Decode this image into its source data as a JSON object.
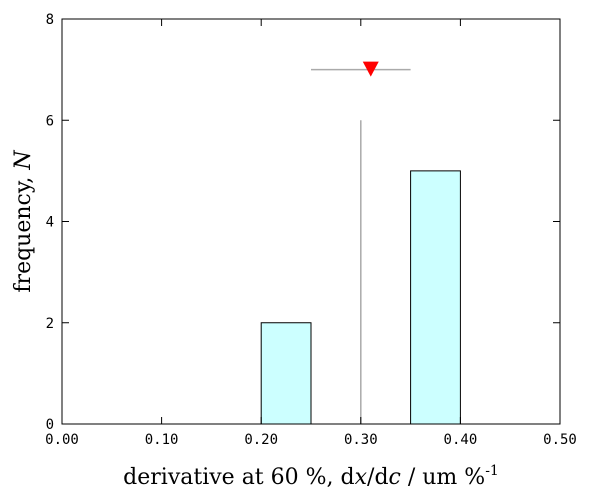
{
  "chart_data": {
    "type": "bar",
    "xlabel_parts": {
      "prefix": "derivative at 60 %, d",
      "x": "x",
      "slash": "/d",
      "c": "c",
      "units": " / um %",
      "sup": "-1"
    },
    "ylabel_parts": {
      "prefix": "frequency, ",
      "n": "N"
    },
    "xlim": [
      0.0,
      0.5
    ],
    "ylim": [
      0,
      8
    ],
    "x_ticks": [
      0.0,
      0.1,
      0.2,
      0.3,
      0.4,
      0.5
    ],
    "x_tick_labels": [
      "0.00",
      "0.10",
      "0.20",
      "0.30",
      "0.40",
      "0.50"
    ],
    "y_ticks": [
      0,
      2,
      4,
      6,
      8
    ],
    "y_tick_labels": [
      "0",
      "2",
      "4",
      "6",
      "8"
    ],
    "bins": [
      {
        "start": 0.2,
        "end": 0.25,
        "count": 2
      },
      {
        "start": 0.35,
        "end": 0.4,
        "count": 5
      }
    ],
    "reference_line": {
      "x": 0.3,
      "y_top": 6,
      "color": "#aaaaaa"
    },
    "marker": {
      "x": 0.31,
      "y": 7,
      "err_low": 0.25,
      "err_high": 0.35,
      "color": "#ff0000",
      "err_color": "#aaaaaa"
    },
    "bar_fill": "#ccffff",
    "bar_stroke": "#000000",
    "grid": false
  }
}
